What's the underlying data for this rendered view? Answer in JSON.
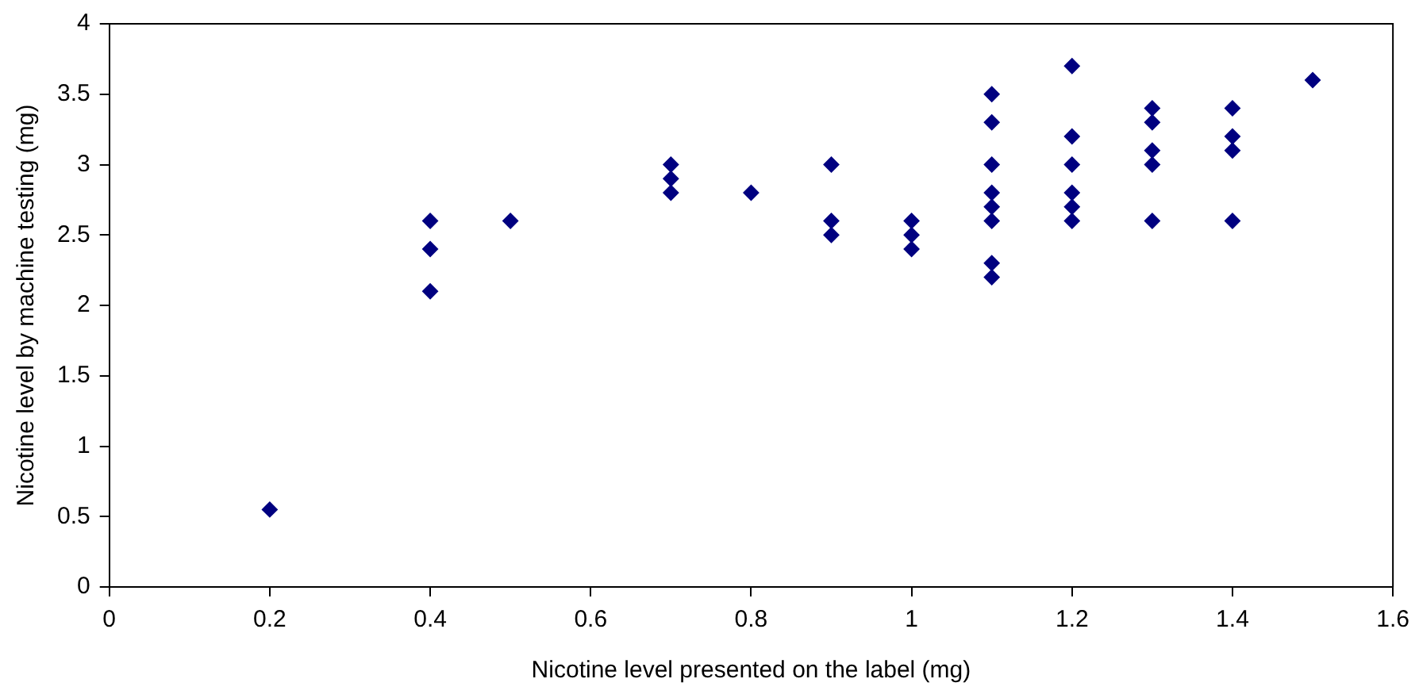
{
  "chart_data": {
    "type": "scatter",
    "xlabel": "Nicotine level presented on the label (mg)",
    "ylabel": "Nicotine level by machine testing (mg)",
    "series": [
      {
        "color": "#000080",
        "x": [
          0.2,
          0.4,
          0.4,
          0.4,
          0.5,
          0.7,
          0.7,
          0.7,
          0.8,
          0.9,
          0.9,
          0.9,
          1.0,
          1.0,
          1.0,
          1.1,
          1.1,
          1.1,
          1.1,
          1.1,
          1.1,
          1.1,
          1.1,
          1.2,
          1.2,
          1.2,
          1.2,
          1.2,
          1.2,
          1.3,
          1.3,
          1.3,
          1.3,
          1.3,
          1.4,
          1.4,
          1.4,
          1.4,
          1.5
        ],
        "values": [
          0.55,
          2.1,
          2.4,
          2.6,
          2.6,
          2.8,
          2.9,
          3.0,
          2.8,
          2.5,
          2.6,
          3.0,
          2.4,
          2.5,
          2.6,
          2.2,
          2.3,
          2.6,
          2.7,
          2.8,
          3.0,
          3.3,
          3.5,
          2.6,
          2.7,
          2.8,
          3.0,
          3.2,
          3.7,
          2.6,
          3.0,
          3.1,
          3.3,
          3.4,
          2.6,
          3.1,
          3.2,
          3.4,
          3.6
        ]
      }
    ],
    "xlim": [
      0,
      1.6
    ],
    "xticks": [
      0,
      0.2,
      0.4,
      0.6,
      0.8,
      1,
      1.2,
      1.4,
      1.6
    ],
    "ylim": [
      0,
      4
    ],
    "yticks": [
      0,
      0.5,
      1,
      1.5,
      2,
      2.5,
      3,
      3.5,
      4
    ],
    "grid": false,
    "legend": false,
    "marker": "diamond"
  }
}
